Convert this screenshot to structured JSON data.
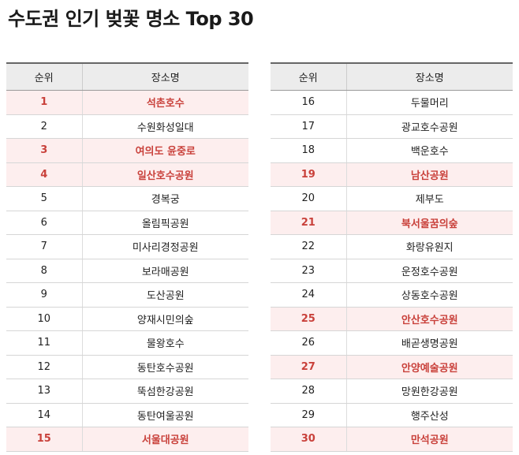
{
  "title": "수도권 인기 벚꽃 명소 Top 30",
  "headers": {
    "rank": "순위",
    "name": "장소명"
  },
  "colors": {
    "highlight_text": "#c9413b",
    "highlight_bg": "#fdeeee",
    "header_bg": "#ececec"
  },
  "left_rows": [
    {
      "rank": "1",
      "name": "석촌호수",
      "highlight": true
    },
    {
      "rank": "2",
      "name": "수원화성일대",
      "highlight": false
    },
    {
      "rank": "3",
      "name": "여의도 윤중로",
      "highlight": true
    },
    {
      "rank": "4",
      "name": "일산호수공원",
      "highlight": true
    },
    {
      "rank": "5",
      "name": "경복궁",
      "highlight": false
    },
    {
      "rank": "6",
      "name": "올림픽공원",
      "highlight": false
    },
    {
      "rank": "7",
      "name": "미사리경정공원",
      "highlight": false
    },
    {
      "rank": "8",
      "name": "보라매공원",
      "highlight": false
    },
    {
      "rank": "9",
      "name": "도산공원",
      "highlight": false
    },
    {
      "rank": "10",
      "name": "양재시민의숲",
      "highlight": false
    },
    {
      "rank": "11",
      "name": "물왕호수",
      "highlight": false
    },
    {
      "rank": "12",
      "name": "동탄호수공원",
      "highlight": false
    },
    {
      "rank": "13",
      "name": "뚝섬한강공원",
      "highlight": false
    },
    {
      "rank": "14",
      "name": "동탄여울공원",
      "highlight": false
    },
    {
      "rank": "15",
      "name": "서울대공원",
      "highlight": true
    }
  ],
  "right_rows": [
    {
      "rank": "16",
      "name": "두물머리",
      "highlight": false
    },
    {
      "rank": "17",
      "name": "광교호수공원",
      "highlight": false
    },
    {
      "rank": "18",
      "name": "백운호수",
      "highlight": false
    },
    {
      "rank": "19",
      "name": "남산공원",
      "highlight": true
    },
    {
      "rank": "20",
      "name": "제부도",
      "highlight": false
    },
    {
      "rank": "21",
      "name": "북서울꿈의숲",
      "highlight": true
    },
    {
      "rank": "22",
      "name": "화랑유원지",
      "highlight": false
    },
    {
      "rank": "23",
      "name": "운정호수공원",
      "highlight": false
    },
    {
      "rank": "24",
      "name": "상동호수공원",
      "highlight": false
    },
    {
      "rank": "25",
      "name": "안산호수공원",
      "highlight": true
    },
    {
      "rank": "26",
      "name": "배곧생명공원",
      "highlight": false
    },
    {
      "rank": "27",
      "name": "안양예술공원",
      "highlight": true
    },
    {
      "rank": "28",
      "name": "망원한강공원",
      "highlight": false
    },
    {
      "rank": "29",
      "name": "행주산성",
      "highlight": false
    },
    {
      "rank": "30",
      "name": "만석공원",
      "highlight": true
    }
  ]
}
